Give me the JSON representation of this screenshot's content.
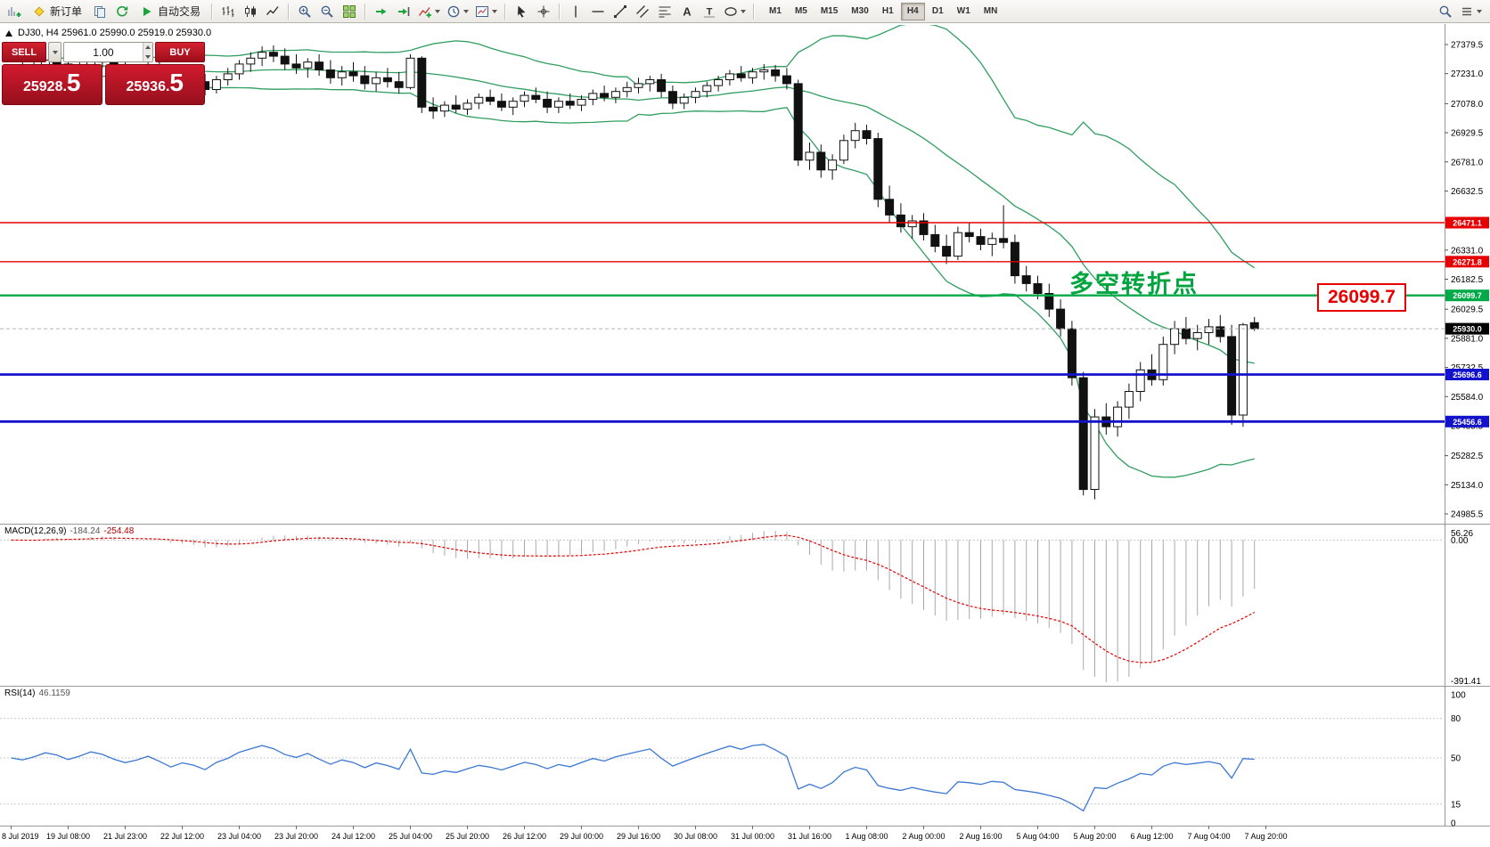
{
  "toolbar": {
    "items": [
      {
        "icon": "chart-plus",
        "name": "new-chart-button"
      },
      {
        "icon": "diamond",
        "name": "new-order-button",
        "label": "新订单"
      },
      {
        "icon": "profiles",
        "name": "charts-profile-button"
      },
      {
        "icon": "refresh",
        "name": "refresh-charts-button"
      },
      {
        "icon": "play",
        "name": "autotrading-button",
        "label": "自动交易"
      },
      {
        "type": "sep"
      },
      {
        "icon": "bars",
        "name": "bar-chart-button"
      },
      {
        "icon": "candles",
        "name": "candlestick-chart-button"
      },
      {
        "icon": "linechart",
        "name": "line-chart-button"
      },
      {
        "type": "sep"
      },
      {
        "icon": "zoom-in",
        "name": "zoom-in-button"
      },
      {
        "icon": "zoom-out",
        "name": "zoom-out-button"
      },
      {
        "icon": "tile",
        "name": "tile-windows-button"
      },
      {
        "type": "sep"
      },
      {
        "icon": "autoscroll",
        "name": "auto-scroll-button"
      },
      {
        "icon": "shift",
        "name": "chart-shift-button"
      },
      {
        "icon": "indicators",
        "name": "indicators-button",
        "caret": true
      },
      {
        "icon": "clock",
        "name": "periods-button",
        "caret": true
      },
      {
        "icon": "template",
        "name": "templates-button",
        "caret": true
      },
      {
        "type": "sep"
      },
      {
        "icon": "cursor",
        "name": "cursor-button"
      },
      {
        "icon": "crosshair",
        "name": "crosshair-button"
      },
      {
        "type": "sep"
      },
      {
        "icon": "vline",
        "name": "vertical-line-button"
      },
      {
        "icon": "hline",
        "name": "horizontal-line-button"
      },
      {
        "icon": "trendline",
        "name": "trendline-button"
      },
      {
        "icon": "channel",
        "name": "channel-button"
      },
      {
        "icon": "fibo",
        "name": "fibonacci-button"
      },
      {
        "icon": "text",
        "name": "text-button"
      },
      {
        "icon": "label",
        "name": "text-label-button"
      },
      {
        "icon": "shapes",
        "name": "shapes-button",
        "caret": true
      },
      {
        "type": "sep"
      },
      {
        "type": "tf"
      }
    ],
    "right_items": [
      {
        "icon": "search",
        "name": "search-button"
      },
      {
        "icon": "menu",
        "name": "toolbar-options-button",
        "caret": true
      }
    ],
    "timeframes": [
      "M1",
      "M5",
      "M15",
      "M30",
      "H1",
      "H4",
      "D1",
      "W1",
      "MN"
    ],
    "active_timeframe": "H4"
  },
  "chart": {
    "symbol_ohlc": "DJ30, H4  25961.0 25990.0 25919.0 25930.0",
    "annotation": "多空转折点",
    "big_price_label": "26099.7"
  },
  "trade_panel": {
    "sell_label": "SELL",
    "buy_label": "BUY",
    "volume": "1.00",
    "sell_price_main": "25928.",
    "sell_price_pip": "5",
    "buy_price_main": "25936.",
    "buy_price_pip": "5"
  },
  "macd": {
    "label": "MACD(12,26,9)",
    "value_main": "-184.24",
    "value_signal": "-254.48"
  },
  "rsi": {
    "label": "RSI(14)",
    "value": "46.1159"
  },
  "chart_data": {
    "type": "candlestick",
    "symbol": "DJ30",
    "timeframe": "H4",
    "ohlc_display": {
      "open": "25961.0",
      "high": "25990.0",
      "low": "25919.0",
      "close": "25930.0"
    },
    "price_axis_ticks": [
      "27379.5",
      "27231.0",
      "27078.0",
      "26929.5",
      "26781.0",
      "26632.5",
      "26484.0",
      "26331.0",
      "26182.5",
      "26029.5",
      "25881.0",
      "25732.5",
      "25584.0",
      "25435.5",
      "25282.5",
      "25134.0",
      "24985.5"
    ],
    "time_axis_labels": [
      "8 Jul 2019",
      "19 Jul 08:00",
      "21 Jul 23:00",
      "22 Jul 12:00",
      "23 Jul 04:00",
      "23 Jul 20:00",
      "24 Jul 12:00",
      "25 Jul 04:00",
      "25 Jul 20:00",
      "26 Jul 12:00",
      "29 Jul 00:00",
      "29 Jul 16:00",
      "30 Jul 08:00",
      "31 Jul 00:00",
      "31 Jul 16:00",
      "1 Aug 08:00",
      "2 Aug 00:00",
      "2 Aug 16:00",
      "5 Aug 04:00",
      "5 Aug 20:00",
      "6 Aug 12:00",
      "7 Aug 04:00",
      "7 Aug 20:00"
    ],
    "horizontal_levels": [
      {
        "value": 26471.1,
        "tag": "26471.1",
        "color": "#e60000",
        "width": 1.4
      },
      {
        "value": 26271.8,
        "tag": "26271.8",
        "color": "#e60000",
        "width": 1.4
      },
      {
        "value": 26099.7,
        "tag": "26099.7",
        "color": "#00a947",
        "width": 2.4
      },
      {
        "value": 25696.6,
        "tag": "25696.6",
        "color": "#1212cd",
        "width": 2.8
      },
      {
        "value": 25456.6,
        "tag": "25456.6",
        "color": "#1212cd",
        "width": 2.8
      }
    ],
    "current_price": {
      "value": 25930.0,
      "tag": "25930.0",
      "color": "#000000"
    },
    "overlays": {
      "bollinger": {
        "period": 20,
        "deviation": 2,
        "color": "#2f9e5f"
      }
    },
    "indicators": [
      {
        "name": "MACD",
        "params": "12,26,9",
        "value_main": -184.24,
        "value_signal": -254.48,
        "axis_ticks": [
          "56.26",
          "0.00",
          "-391.41"
        ]
      },
      {
        "name": "RSI",
        "params": "14",
        "value": 46.1159,
        "axis_ticks": [
          "100",
          "80",
          "50",
          "15",
          "0"
        ],
        "levels": [
          80,
          50,
          15
        ]
      }
    ],
    "annotations": [
      {
        "text": "多空转折点",
        "color": "#00a43e"
      },
      {
        "text": "26099.7",
        "color": "#e60000"
      }
    ],
    "candles": [
      [
        27200,
        27280,
        27150,
        27250
      ],
      [
        27250,
        27310,
        27200,
        27230
      ],
      [
        27230,
        27290,
        27180,
        27260
      ],
      [
        27260,
        27330,
        27220,
        27300
      ],
      [
        27300,
        27350,
        27250,
        27280
      ],
      [
        27280,
        27320,
        27210,
        27240
      ],
      [
        27240,
        27300,
        27200,
        27270
      ],
      [
        27270,
        27340,
        27230,
        27310
      ],
      [
        27310,
        27360,
        27260,
        27290
      ],
      [
        27290,
        27330,
        27220,
        27250
      ],
      [
        27250,
        27300,
        27190,
        27220
      ],
      [
        27220,
        27280,
        27170,
        27240
      ],
      [
        27240,
        27300,
        27200,
        27270
      ],
      [
        27270,
        27320,
        27210,
        27230
      ],
      [
        27230,
        27270,
        27150,
        27180
      ],
      [
        27180,
        27240,
        27140,
        27210
      ],
      [
        27210,
        27260,
        27160,
        27190
      ],
      [
        27190,
        27230,
        27120,
        27150
      ],
      [
        27150,
        27220,
        27130,
        27200
      ],
      [
        27200,
        27260,
        27170,
        27230
      ],
      [
        27230,
        27300,
        27200,
        27280
      ],
      [
        27280,
        27340,
        27240,
        27310
      ],
      [
        27310,
        27370,
        27270,
        27340
      ],
      [
        27340,
        27375,
        27290,
        27320
      ],
      [
        27320,
        27360,
        27250,
        27280
      ],
      [
        27280,
        27330,
        27230,
        27260
      ],
      [
        27260,
        27310,
        27210,
        27290
      ],
      [
        27290,
        27330,
        27220,
        27250
      ],
      [
        27250,
        27300,
        27180,
        27210
      ],
      [
        27210,
        27270,
        27170,
        27240
      ],
      [
        27240,
        27290,
        27190,
        27220
      ],
      [
        27220,
        27270,
        27150,
        27180
      ],
      [
        27180,
        27240,
        27140,
        27210
      ],
      [
        27210,
        27260,
        27160,
        27190
      ],
      [
        27190,
        27240,
        27130,
        27160
      ],
      [
        27160,
        27330,
        27150,
        27310
      ],
      [
        27310,
        27320,
        27030,
        27060
      ],
      [
        27060,
        27110,
        27000,
        27040
      ],
      [
        27040,
        27090,
        27010,
        27070
      ],
      [
        27070,
        27120,
        27030,
        27050
      ],
      [
        27050,
        27100,
        27020,
        27080
      ],
      [
        27080,
        27130,
        27050,
        27110
      ],
      [
        27110,
        27150,
        27070,
        27090
      ],
      [
        27090,
        27130,
        27040,
        27060
      ],
      [
        27060,
        27110,
        27020,
        27090
      ],
      [
        27090,
        27140,
        27060,
        27120
      ],
      [
        27120,
        27160,
        27080,
        27100
      ],
      [
        27100,
        27140,
        27030,
        27060
      ],
      [
        27060,
        27110,
        27030,
        27090
      ],
      [
        27090,
        27130,
        27050,
        27070
      ],
      [
        27070,
        27120,
        27040,
        27100
      ],
      [
        27100,
        27150,
        27070,
        27130
      ],
      [
        27130,
        27170,
        27090,
        27110
      ],
      [
        27110,
        27160,
        27080,
        27140
      ],
      [
        27140,
        27190,
        27110,
        27160
      ],
      [
        27160,
        27210,
        27130,
        27180
      ],
      [
        27180,
        27220,
        27140,
        27200
      ],
      [
        27200,
        27230,
        27110,
        27140
      ],
      [
        27140,
        27170,
        27050,
        27080
      ],
      [
        27080,
        27130,
        27050,
        27110
      ],
      [
        27110,
        27160,
        27080,
        27140
      ],
      [
        27140,
        27190,
        27110,
        27170
      ],
      [
        27170,
        27220,
        27140,
        27200
      ],
      [
        27200,
        27250,
        27170,
        27230
      ],
      [
        27230,
        27270,
        27190,
        27210
      ],
      [
        27210,
        27260,
        27180,
        27240
      ],
      [
        27240,
        27280,
        27200,
        27250
      ],
      [
        27250,
        27275,
        27190,
        27220
      ],
      [
        27220,
        27260,
        27150,
        27180
      ],
      [
        27180,
        27200,
        26760,
        26790
      ],
      [
        26790,
        26880,
        26740,
        26830
      ],
      [
        26830,
        26870,
        26700,
        26740
      ],
      [
        26740,
        26820,
        26690,
        26790
      ],
      [
        26790,
        26920,
        26770,
        26890
      ],
      [
        26890,
        26980,
        26850,
        26940
      ],
      [
        26940,
        26970,
        26870,
        26900
      ],
      [
        26900,
        26930,
        26550,
        26590
      ],
      [
        26590,
        26660,
        26470,
        26510
      ],
      [
        26510,
        26570,
        26420,
        26450
      ],
      [
        26450,
        26510,
        26390,
        26480
      ],
      [
        26480,
        26520,
        26380,
        26410
      ],
      [
        26410,
        26460,
        26320,
        26350
      ],
      [
        26350,
        26410,
        26260,
        26300
      ],
      [
        26300,
        26450,
        26280,
        26420
      ],
      [
        26420,
        26470,
        26370,
        26400
      ],
      [
        26400,
        26440,
        26330,
        26360
      ],
      [
        26360,
        26420,
        26300,
        26390
      ],
      [
        26390,
        26560,
        26340,
        26370
      ],
      [
        26370,
        26410,
        26160,
        26200
      ],
      [
        26200,
        26250,
        26120,
        26160
      ],
      [
        26160,
        26200,
        26080,
        26110
      ],
      [
        26110,
        26160,
        25990,
        26030
      ],
      [
        26030,
        26080,
        25890,
        25930
      ],
      [
        25930,
        25970,
        25640,
        25680
      ],
      [
        25680,
        25710,
        25080,
        25110
      ],
      [
        25110,
        25520,
        25060,
        25480
      ],
      [
        25480,
        25550,
        25390,
        25430
      ],
      [
        25430,
        25560,
        25380,
        25530
      ],
      [
        25530,
        25650,
        25470,
        25610
      ],
      [
        25610,
        25760,
        25560,
        25720
      ],
      [
        25720,
        25800,
        25640,
        25670
      ],
      [
        25670,
        25890,
        25640,
        25850
      ],
      [
        25850,
        25970,
        25800,
        25930
      ],
      [
        25930,
        25990,
        25850,
        25880
      ],
      [
        25880,
        25950,
        25820,
        25910
      ],
      [
        25910,
        25980,
        25850,
        25940
      ],
      [
        25940,
        26000,
        25860,
        25890
      ],
      [
        25890,
        25950,
        25440,
        25490
      ],
      [
        25490,
        25960,
        25430,
        25950
      ],
      [
        25961,
        25990,
        25919,
        25930
      ]
    ]
  }
}
